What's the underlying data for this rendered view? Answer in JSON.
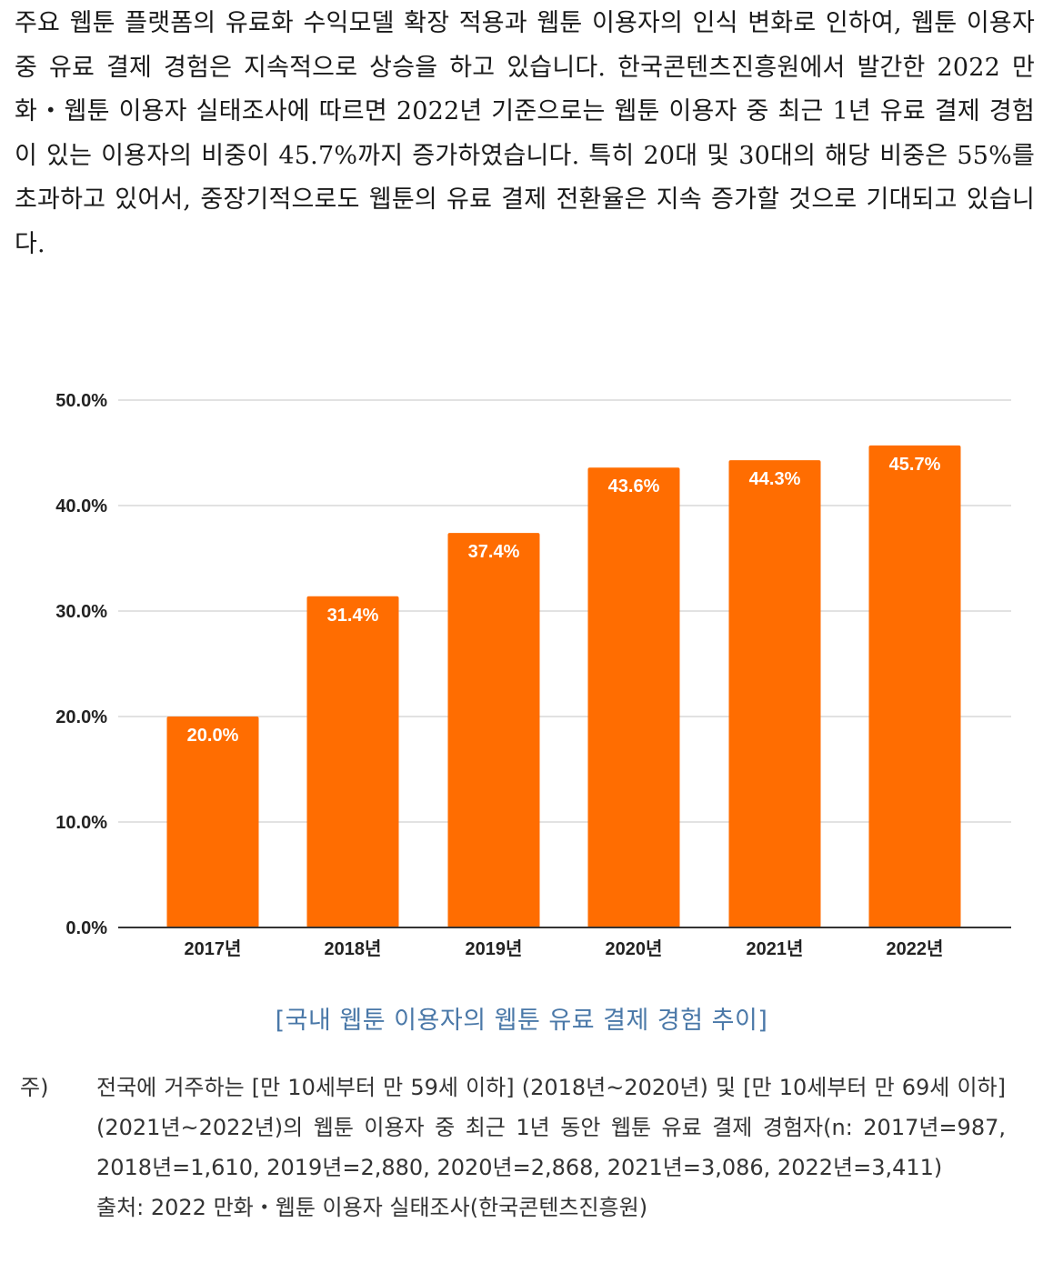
{
  "intro_text": "주요 웹툰 플랫폼의 유료화 수익모델 확장 적용과 웹툰 이용자의 인식 변화로 인하여, 웹툰 이용자 중 유료 결제 경험은 지속적으로 상승을 하고 있습니다. 한국콘텐츠진흥원에서 발간한 2022 만화・웹툰 이용자 실태조사에 따르면 2022년 기준으로는 웹툰 이용자 중 최근 1년 유료 결제 경험이 있는 이용자의 비중이 45.7%까지 증가하였습니다. 특히 20대 및 30대의 해당 비중은 55%를 초과하고 있어서, 중장기적으로도 웹툰의 유료 결제 전환율은 지속 증가할 것으로 기대되고 있습니다.",
  "chart_data": {
    "type": "bar",
    "categories": [
      "2017년",
      "2018년",
      "2019년",
      "2020년",
      "2021년",
      "2022년"
    ],
    "values": [
      20.0,
      31.4,
      37.4,
      43.6,
      44.3,
      45.7
    ],
    "value_labels": [
      "20.0%",
      "31.4%",
      "37.4%",
      "43.6%",
      "44.3%",
      "45.7%"
    ],
    "ytick_labels": [
      "50.0%",
      "40.0%",
      "30.0%",
      "20.0%",
      "10.0%",
      "0.0%"
    ],
    "yticks": [
      50,
      40,
      30,
      20,
      10,
      0
    ],
    "ylim": [
      0,
      50
    ],
    "grid": true,
    "bar_color": "#ff6d01",
    "grid_color": "#d9d9d9",
    "axis_color": "#333333",
    "title": "",
    "xlabel": "",
    "ylabel": ""
  },
  "caption": "[국내 웹툰 이용자의 웹툰 유료 결제 경험 추이]",
  "note": {
    "mark": "주)",
    "text": "전국에 거주하는 [만 10세부터 만 59세 이하] (2018년~2020년) 및 [만 10세부터 만 69세 이하] (2021년~2022년)의 웹툰 이용자 중 최근 1년 동안 웹툰 유료 결제 경험자(n: 2017년=987, 2018년=1,610, 2019년=2,880, 2020년=2,868, 2021년=3,086, 2022년=3,411)",
    "source": "출처: 2022 만화・웹툰 이용자 실태조사(한국콘텐츠진흥원)"
  }
}
